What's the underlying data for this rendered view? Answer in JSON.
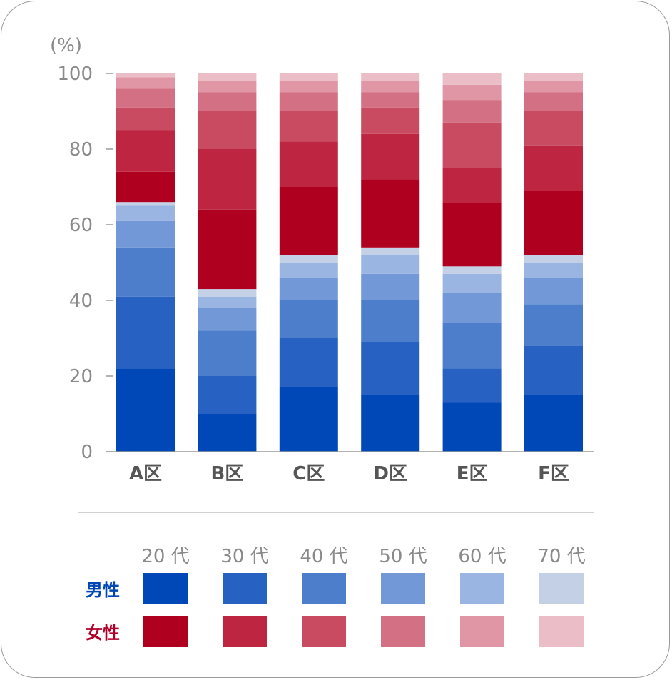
{
  "chart_data": {
    "type": "bar",
    "stacked": true,
    "unit_label": "(%)",
    "ylim": [
      0,
      100
    ],
    "yticks": [
      "0",
      "20",
      "40",
      "60",
      "80",
      "100"
    ],
    "categories": [
      "A区",
      "B区",
      "C区",
      "D区",
      "E区",
      "F区"
    ],
    "age_groups": [
      "20 代",
      "30 代",
      "40 代",
      "50 代",
      "60 代",
      "70 代"
    ],
    "groups": [
      {
        "label": "男性",
        "label_color": "#0047b3",
        "colors": [
          "#0047b8",
          "#2762c2",
          "#4c7ecc",
          "#7298d7",
          "#9bb5e2",
          "#c3d0e6"
        ],
        "series": [
          {
            "age": "20 代",
            "values": [
              22,
              10,
              17,
              15,
              13,
              15
            ]
          },
          {
            "age": "30 代",
            "values": [
              19,
              10,
              13,
              14,
              9,
              13
            ]
          },
          {
            "age": "40 代",
            "values": [
              13,
              12,
              10,
              11,
              12,
              11
            ]
          },
          {
            "age": "50 代",
            "values": [
              7,
              6,
              6,
              7,
              8,
              7
            ]
          },
          {
            "age": "60 代",
            "values": [
              4,
              3,
              4,
              5,
              5,
              4
            ]
          },
          {
            "age": "70 代",
            "values": [
              1,
              2,
              2,
              2,
              2,
              2
            ]
          }
        ]
      },
      {
        "label": "女性",
        "label_color": "#b0002a",
        "colors": [
          "#b00020",
          "#bd2540",
          "#c84b62",
          "#d47083",
          "#e096a4",
          "#ebbdc6"
        ],
        "series": [
          {
            "age": "20 代",
            "values": [
              8,
              21,
              18,
              18,
              17,
              17
            ]
          },
          {
            "age": "30 代",
            "values": [
              11,
              16,
              12,
              12,
              9,
              12
            ]
          },
          {
            "age": "40 代",
            "values": [
              6,
              10,
              8,
              7,
              12,
              9
            ]
          },
          {
            "age": "50 代",
            "values": [
              5,
              5,
              5,
              4,
              6,
              5
            ]
          },
          {
            "age": "60 代",
            "values": [
              3,
              3,
              3,
              3,
              4,
              3
            ]
          },
          {
            "age": "70 代",
            "values": [
              1,
              2,
              2,
              2,
              3,
              2
            ]
          }
        ]
      }
    ]
  }
}
